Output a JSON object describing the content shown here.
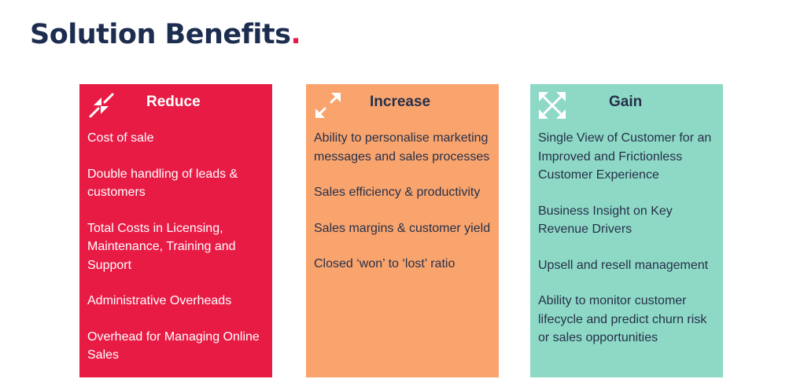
{
  "title": {
    "text": "Solution Benefits",
    "dot": "."
  },
  "colors": {
    "reduce": "#e81b45",
    "increase": "#f9a46d",
    "gain": "#8ed9c6",
    "title": "#1c2d4f"
  },
  "cards": [
    {
      "title": "Reduce",
      "icon": "arrows-inward-icon",
      "items": [
        "Cost of sale",
        "Double handling of leads & customers",
        "Total Costs in Licensing, Maintenance, Training and Support",
        "Administrative Overheads",
        "Overhead for Managing Online Sales"
      ]
    },
    {
      "title": "Increase",
      "icon": "arrows-outward-icon",
      "items": [
        "Ability to personalise marketing messages and sales processes",
        "Sales efficiency & productivity",
        "Sales margins & customer yield",
        "Closed ‘won’ to ‘lost’ ratio"
      ]
    },
    {
      "title": "Gain",
      "icon": "expand-arrows-icon",
      "items": [
        "Single View of Customer for an Improved and Frictionless Customer Experience",
        "Business Insight on Key Revenue Drivers",
        "Upsell and resell management",
        "Ability to monitor customer lifecycle and predict churn risk or sales opportunities"
      ]
    }
  ]
}
